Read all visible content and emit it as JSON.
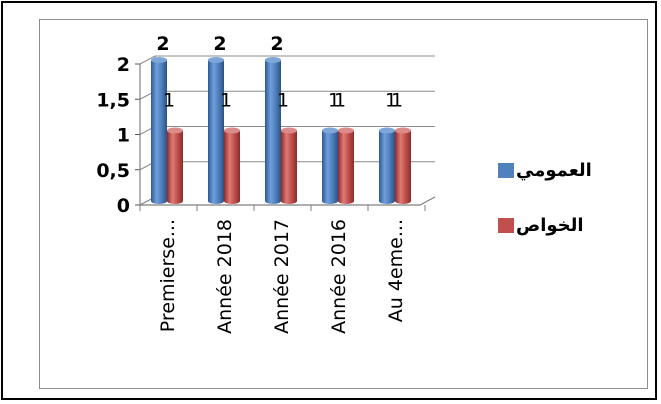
{
  "chart_data": {
    "type": "bar",
    "categories": [
      "Premierse...",
      "Année 2018",
      "Année 2017",
      "Année 2016",
      "Au 4eme..."
    ],
    "series": [
      {
        "name": "العمومي",
        "values": [
          2,
          2,
          2,
          1,
          1
        ],
        "color": "#4f81bd"
      },
      {
        "name": "الخواص",
        "values": [
          1,
          1,
          1,
          1,
          1
        ],
        "color": "#c0504d"
      }
    ],
    "y_ticks": [
      "0",
      "0,5",
      "1",
      "1,5",
      "2"
    ],
    "ylim": [
      0,
      2
    ],
    "grid": true,
    "legend_position": "right",
    "style": "3d-cylinder"
  }
}
